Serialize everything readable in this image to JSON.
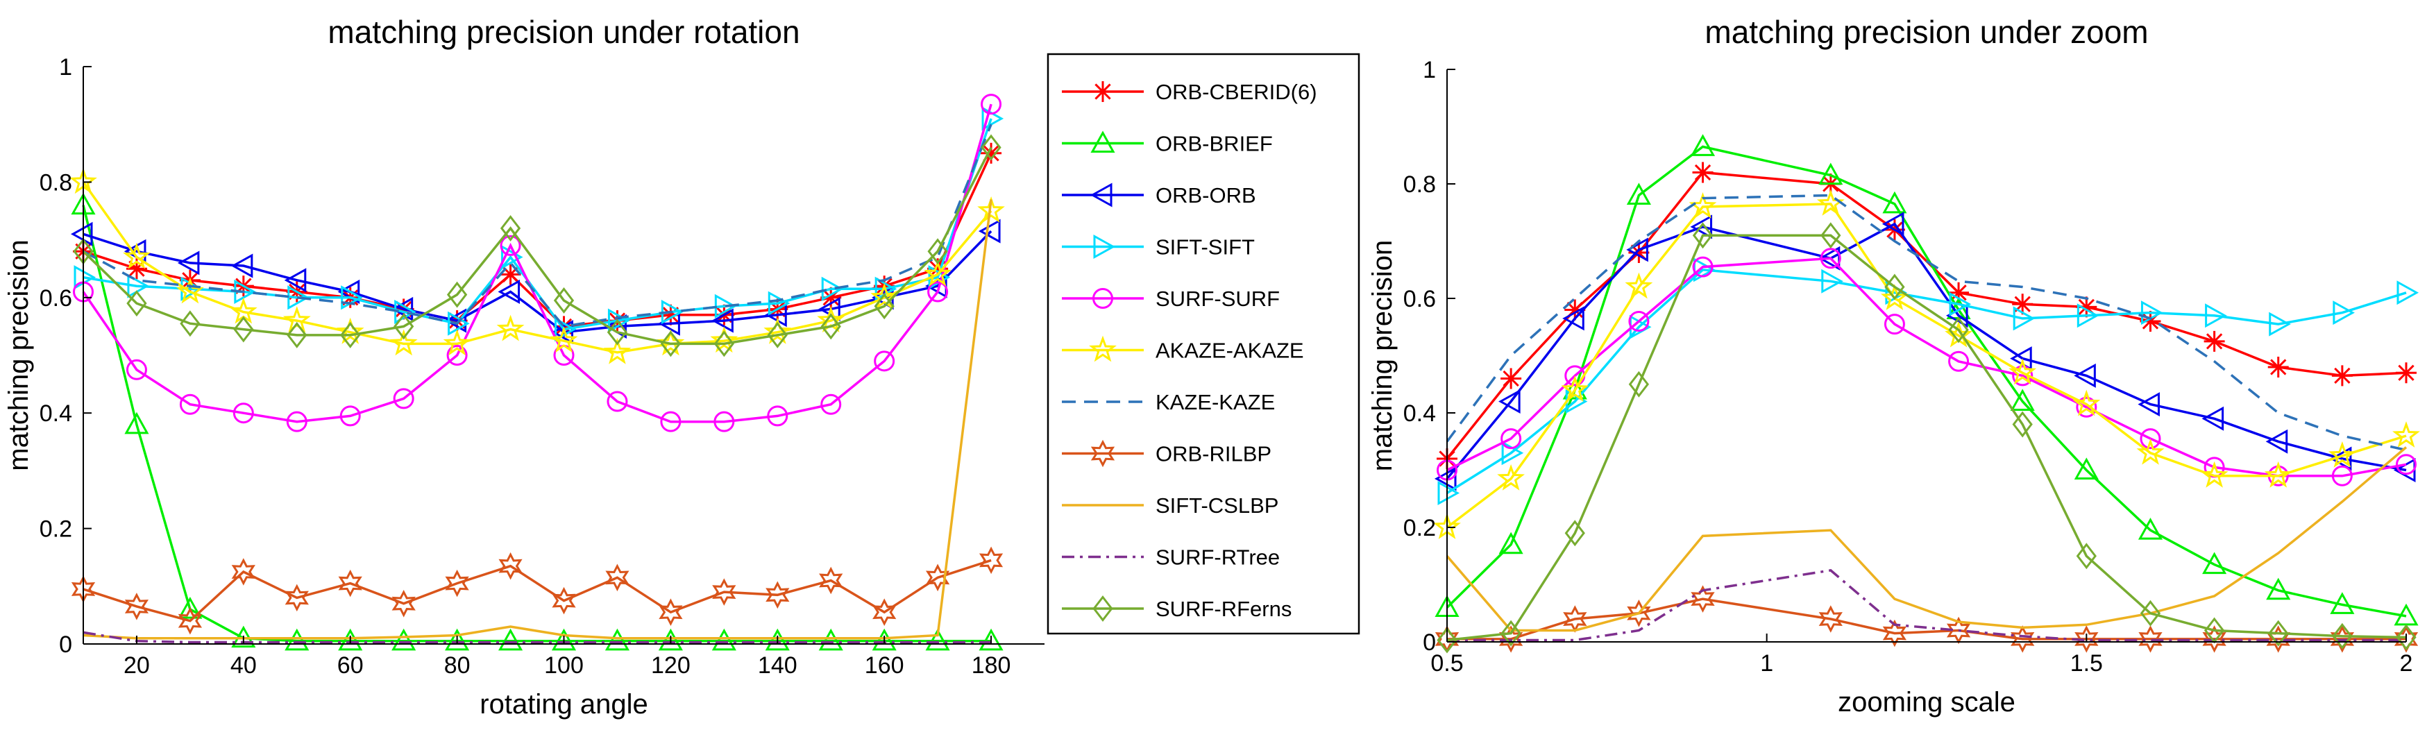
{
  "chart_data": [
    {
      "type": "line",
      "title": "matching precision under rotation",
      "xlabel": "rotating  angle",
      "ylabel": "matching  precision",
      "xlim": [
        10,
        190
      ],
      "ylim": [
        0,
        1
      ],
      "xticks": [
        20,
        40,
        60,
        80,
        100,
        120,
        140,
        160,
        180
      ],
      "yticks": [
        0,
        0.2,
        0.4,
        0.6,
        0.8,
        1
      ],
      "grid": false,
      "legend": "right",
      "x": [
        10,
        20,
        30,
        40,
        50,
        60,
        70,
        80,
        90,
        100,
        110,
        120,
        130,
        140,
        150,
        160,
        170,
        180
      ],
      "series": [
        {
          "name": "ORB-CBERID(6)",
          "color": "#ff0000",
          "marker": "asterisk",
          "dash": "solid",
          "values": [
            0.68,
            0.65,
            0.63,
            0.62,
            0.61,
            0.6,
            0.58,
            0.56,
            0.64,
            0.55,
            0.56,
            0.57,
            0.57,
            0.58,
            0.6,
            0.62,
            0.65,
            0.85
          ]
        },
        {
          "name": "ORB-BRIEF",
          "color": "#00ee00",
          "marker": "triangle-up",
          "dash": "solid",
          "values": [
            0.76,
            0.38,
            0.06,
            0.01,
            0.005,
            0.005,
            0.005,
            0.005,
            0.005,
            0.005,
            0.005,
            0.005,
            0.005,
            0.005,
            0.005,
            0.005,
            0.005,
            0.005
          ]
        },
        {
          "name": "ORB-ORB",
          "color": "#0000ee",
          "marker": "triangle-left",
          "dash": "solid",
          "values": [
            0.71,
            0.68,
            0.66,
            0.655,
            0.63,
            0.61,
            0.58,
            0.56,
            0.61,
            0.54,
            0.55,
            0.555,
            0.56,
            0.57,
            0.58,
            0.6,
            0.62,
            0.715
          ]
        },
        {
          "name": "SIFT-SIFT",
          "color": "#00ddff",
          "marker": "triangle-right",
          "dash": "solid",
          "values": [
            0.635,
            0.62,
            0.615,
            0.61,
            0.6,
            0.6,
            0.575,
            0.555,
            0.67,
            0.545,
            0.56,
            0.575,
            0.585,
            0.59,
            0.615,
            0.615,
            0.635,
            0.91
          ]
        },
        {
          "name": "SURF-SURF",
          "color": "#ff00ff",
          "marker": "circle",
          "dash": "solid",
          "values": [
            0.61,
            0.475,
            0.415,
            0.4,
            0.385,
            0.395,
            0.425,
            0.5,
            0.69,
            0.5,
            0.42,
            0.385,
            0.385,
            0.395,
            0.415,
            0.49,
            0.61,
            0.935
          ]
        },
        {
          "name": "AKAZE-AKAZE",
          "color": "#ffee00",
          "marker": "star",
          "dash": "solid",
          "values": [
            0.8,
            0.67,
            0.61,
            0.575,
            0.56,
            0.54,
            0.52,
            0.52,
            0.545,
            0.525,
            0.505,
            0.52,
            0.525,
            0.54,
            0.56,
            0.6,
            0.64,
            0.75
          ]
        },
        {
          "name": "KAZE-KAZE",
          "color": "#2d72b8",
          "marker": "none",
          "dash": "dashed",
          "values": [
            0.68,
            0.63,
            0.62,
            0.61,
            0.6,
            0.59,
            0.575,
            0.555,
            0.66,
            0.55,
            0.565,
            0.575,
            0.585,
            0.595,
            0.615,
            0.63,
            0.67,
            0.9
          ]
        },
        {
          "name": "ORB-RILBP",
          "color": "#d9541a",
          "marker": "hexagram",
          "dash": "solid",
          "values": [
            0.095,
            0.065,
            0.04,
            0.125,
            0.08,
            0.105,
            0.07,
            0.105,
            0.135,
            0.075,
            0.115,
            0.055,
            0.09,
            0.085,
            0.11,
            0.055,
            0.115,
            0.145
          ]
        },
        {
          "name": "SIFT-CSLBP",
          "color": "#edb120",
          "marker": "none",
          "dash": "solid",
          "values": [
            0.015,
            0.01,
            0.01,
            0.01,
            0.01,
            0.01,
            0.012,
            0.015,
            0.03,
            0.015,
            0.01,
            0.01,
            0.01,
            0.01,
            0.01,
            0.01,
            0.015,
            0.77
          ]
        },
        {
          "name": "SURF-RTree",
          "color": "#7e2f8e",
          "marker": "none",
          "dash": "dashdot",
          "values": [
            0.02,
            0.005,
            0.003,
            0.003,
            0.003,
            0.003,
            0.003,
            0.003,
            0.003,
            0.003,
            0.003,
            0.003,
            0.003,
            0.003,
            0.003,
            0.003,
            0.003,
            0.003
          ]
        },
        {
          "name": "SURF-RFerns",
          "color": "#77ac30",
          "marker": "diamond",
          "dash": "solid",
          "values": [
            0.68,
            0.59,
            0.555,
            0.545,
            0.535,
            0.535,
            0.55,
            0.605,
            0.72,
            0.595,
            0.54,
            0.52,
            0.52,
            0.535,
            0.55,
            0.585,
            0.68,
            0.86
          ]
        }
      ]
    },
    {
      "type": "line",
      "title": "matching precision under zoom",
      "xlabel": "zooming scale",
      "ylabel": "matching precision",
      "xlim": [
        0.5,
        2
      ],
      "ylim": [
        0,
        1
      ],
      "xticks": [
        0.5,
        1,
        1.5,
        2
      ],
      "yticks": [
        0,
        0.2,
        0.4,
        0.6,
        0.8,
        1
      ],
      "grid": false,
      "x": [
        0.5,
        0.6,
        0.7,
        0.8,
        0.9,
        1.1,
        1.2,
        1.3,
        1.4,
        1.5,
        1.6,
        1.7,
        1.8,
        1.9,
        2
      ],
      "series": [
        {
          "name": "ORB-CBERID(6)",
          "color": "#ff0000",
          "marker": "asterisk",
          "dash": "solid",
          "values": [
            0.32,
            0.46,
            0.58,
            0.68,
            0.82,
            0.8,
            0.72,
            0.61,
            0.59,
            0.585,
            0.56,
            0.525,
            0.48,
            0.465,
            0.47
          ]
        },
        {
          "name": "ORB-BRIEF",
          "color": "#00ee00",
          "marker": "triangle-up",
          "dash": "solid",
          "values": [
            0.06,
            0.17,
            0.44,
            0.78,
            0.865,
            0.815,
            0.765,
            0.58,
            0.42,
            0.3,
            0.195,
            0.135,
            0.09,
            0.065,
            0.045
          ]
        },
        {
          "name": "ORB-ORB",
          "color": "#0000ee",
          "marker": "triangle-left",
          "dash": "solid",
          "values": [
            0.285,
            0.42,
            0.565,
            0.685,
            0.725,
            0.67,
            0.73,
            0.57,
            0.495,
            0.465,
            0.415,
            0.39,
            0.35,
            0.32,
            0.3
          ]
        },
        {
          "name": "SIFT-SIFT",
          "color": "#00ddff",
          "marker": "triangle-right",
          "dash": "solid",
          "values": [
            0.26,
            0.33,
            0.42,
            0.55,
            0.65,
            0.63,
            0.61,
            0.59,
            0.565,
            0.57,
            0.575,
            0.57,
            0.555,
            0.575,
            0.61
          ]
        },
        {
          "name": "SURF-SURF",
          "color": "#ff00ff",
          "marker": "circle",
          "dash": "solid",
          "values": [
            0.3,
            0.355,
            0.465,
            0.56,
            0.655,
            0.67,
            0.555,
            0.49,
            0.465,
            0.41,
            0.355,
            0.305,
            0.29,
            0.29,
            0.31
          ]
        },
        {
          "name": "AKAZE-AKAZE",
          "color": "#ffee00",
          "marker": "star",
          "dash": "solid",
          "values": [
            0.2,
            0.285,
            0.44,
            0.62,
            0.76,
            0.765,
            0.6,
            0.535,
            0.47,
            0.415,
            0.33,
            0.29,
            0.29,
            0.325,
            0.36
          ]
        },
        {
          "name": "KAZE-KAZE",
          "color": "#2d72b8",
          "marker": "none",
          "dash": "dashed",
          "values": [
            0.35,
            0.5,
            0.6,
            0.7,
            0.775,
            0.78,
            0.7,
            0.63,
            0.62,
            0.6,
            0.565,
            0.49,
            0.4,
            0.36,
            0.335
          ]
        },
        {
          "name": "ORB-RILBP",
          "color": "#d9541a",
          "marker": "hexagram",
          "dash": "solid",
          "values": [
            0.005,
            0.005,
            0.04,
            0.05,
            0.075,
            0.04,
            0.015,
            0.02,
            0.005,
            0.005,
            0.005,
            0.005,
            0.005,
            0.005,
            0.005
          ]
        },
        {
          "name": "SIFT-CSLBP",
          "color": "#edb120",
          "marker": "none",
          "dash": "solid",
          "values": [
            0.15,
            0.02,
            0.02,
            0.05,
            0.185,
            0.195,
            0.075,
            0.035,
            0.025,
            0.03,
            0.05,
            0.08,
            0.155,
            0.245,
            0.34
          ]
        },
        {
          "name": "SURF-RTree",
          "color": "#7e2f8e",
          "marker": "none",
          "dash": "dashdot",
          "values": [
            0.003,
            0.003,
            0.003,
            0.02,
            0.09,
            0.125,
            0.03,
            0.02,
            0.01,
            0.003,
            0.003,
            0.003,
            0.003,
            0.003,
            0.003
          ]
        },
        {
          "name": "SURF-RFerns",
          "color": "#77ac30",
          "marker": "diamond",
          "dash": "solid",
          "values": [
            0.003,
            0.015,
            0.19,
            0.45,
            0.71,
            0.71,
            0.62,
            0.545,
            0.38,
            0.15,
            0.05,
            0.02,
            0.015,
            0.01,
            0.008
          ]
        }
      ]
    }
  ]
}
